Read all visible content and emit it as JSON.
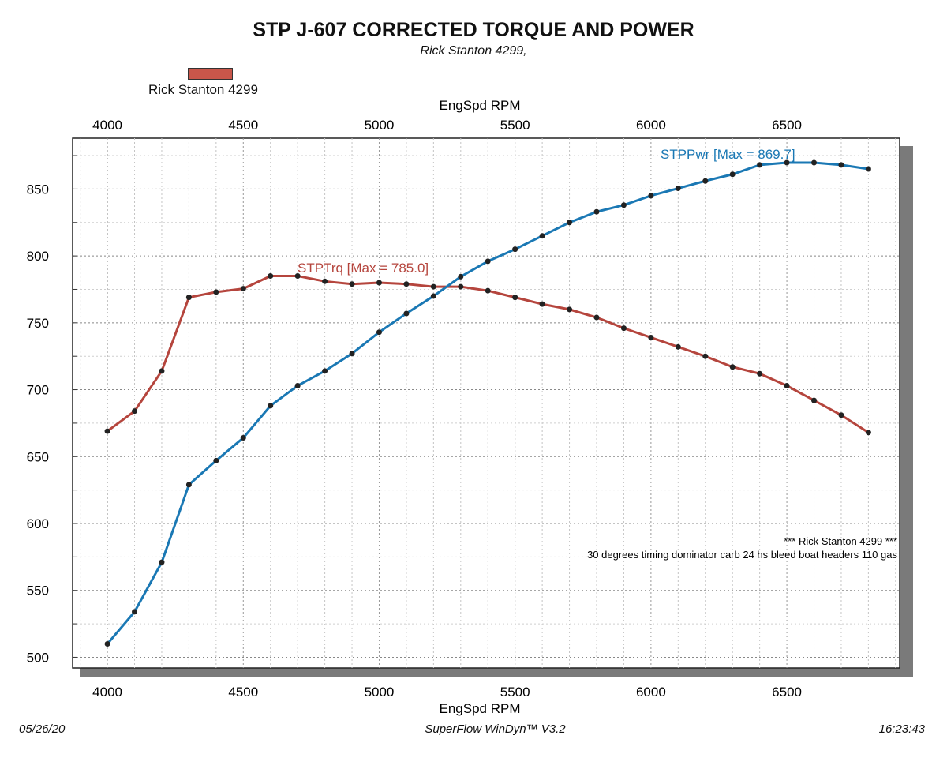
{
  "chart_data": {
    "type": "line",
    "title": "STP J-607 CORRECTED TORQUE AND POWER",
    "subtitle": "Rick Stanton 4299,",
    "legend": [
      {
        "name": "Rick Stanton 4299",
        "color": "#c8564a"
      }
    ],
    "legend_placement": "top-left",
    "xlabel_top": "EngSpd RPM",
    "xlabel": "EngSpd RPM",
    "xlim": [
      3872,
      6915
    ],
    "ylim": [
      492,
      888
    ],
    "xticks": [
      4000,
      4500,
      5000,
      5500,
      6000,
      6500
    ],
    "yticks": [
      500,
      550,
      600,
      650,
      700,
      750,
      800,
      850
    ],
    "grid": true,
    "x": [
      4000,
      4100,
      4200,
      4300,
      4400,
      4500,
      4600,
      4700,
      4800,
      4900,
      5000,
      5100,
      5200,
      5300,
      5400,
      5500,
      5600,
      5700,
      5800,
      5900,
      6000,
      6100,
      6200,
      6300,
      6400,
      6500,
      6600,
      6700,
      6800
    ],
    "series": [
      {
        "name": "STPTrq",
        "color": "#b5453d",
        "label": "STPTrq [Max = 785.0]",
        "values": [
          669,
          684,
          714,
          769,
          773,
          775.5,
          785,
          785,
          781,
          779,
          780,
          779,
          777,
          777,
          774,
          769,
          764,
          760,
          754,
          746,
          739,
          732,
          725,
          717,
          712,
          703,
          692,
          681,
          668
        ]
      },
      {
        "name": "STPPwr",
        "color": "#1a78b4",
        "label": "STPPwr [Max = 869.7]",
        "values": [
          510,
          534,
          571,
          629,
          647,
          664,
          688,
          703,
          714,
          727,
          743,
          757,
          770,
          784.5,
          796,
          805,
          815,
          825,
          833,
          838,
          845,
          850.5,
          856,
          861,
          868,
          869.7,
          869.7,
          868,
          865
        ]
      }
    ],
    "annotations": [
      "*** Rick Stanton 4299 ***",
      "30 degrees timing dominator carb 24 hs bleed boat headers 110 gas"
    ]
  },
  "footer": {
    "date": "05/26/20",
    "software": "SuperFlow WinDyn™ V3.2",
    "time": "16:23:43"
  }
}
